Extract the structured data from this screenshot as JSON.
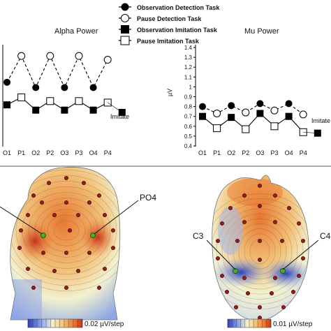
{
  "legend": [
    {
      "label": "Observation Detection Task",
      "marker": "filled-circle"
    },
    {
      "label": "Pause Detection Task",
      "marker": "open-circle"
    },
    {
      "label": "Observation Imitation Task",
      "marker": "filled-square"
    },
    {
      "label": "Pause Imitation Task",
      "marker": "open-square"
    }
  ],
  "chart_data": [
    {
      "type": "line",
      "title": "Alpha Power",
      "categories": [
        "O1",
        "P1",
        "O2",
        "P2",
        "O3",
        "P3",
        "O4",
        "P4"
      ],
      "series": [
        {
          "name": "Observation Detection Task",
          "values": [
            1.0,
            null,
            0.93,
            null,
            0.93,
            null,
            0.93,
            null
          ]
        },
        {
          "name": "Pause Detection Task",
          "values": [
            null,
            1.35,
            null,
            1.35,
            null,
            1.35,
            null,
            1.3
          ]
        },
        {
          "name": "Observation Imitation Task",
          "values": [
            0.7,
            null,
            0.63,
            null,
            0.63,
            null,
            0.63,
            null
          ]
        },
        {
          "name": "Pause Imitation Task",
          "values": [
            null,
            0.8,
            null,
            0.75,
            null,
            0.75,
            null,
            0.73
          ]
        }
      ],
      "extra_marker": {
        "label": "Imitate",
        "value": 0.6
      },
      "colors": {
        "detection": "#000000",
        "imitation": "#000000"
      }
    },
    {
      "type": "line",
      "title": "Mu Power",
      "ylabel": "µV",
      "ylim": [
        0.4,
        1.4
      ],
      "yticks": [
        "1.4",
        "1.3",
        "1.2",
        "1.1",
        "1",
        "0.9",
        "0.8",
        "0.7",
        "0.6",
        "0.5",
        "0.4"
      ],
      "categories": [
        "O1",
        "P1",
        "O2",
        "P2",
        "O3",
        "P3",
        "O4",
        "P4"
      ],
      "series": [
        {
          "name": "Observation Detection Task",
          "values": [
            0.8,
            null,
            0.81,
            null,
            0.83,
            null,
            0.83,
            null
          ]
        },
        {
          "name": "Pause Detection Task",
          "values": [
            null,
            0.73,
            null,
            0.74,
            null,
            0.76,
            null,
            0.72
          ]
        },
        {
          "name": "Observation Imitation Task",
          "values": [
            0.7,
            null,
            0.69,
            null,
            0.73,
            null,
            0.7,
            null
          ]
        },
        {
          "name": "Pause Imitation Task",
          "values": [
            null,
            0.58,
            null,
            0.57,
            null,
            0.6,
            null,
            0.54
          ]
        }
      ],
      "extra_marker": {
        "label": "Imitate",
        "value": 0.53
      }
    },
    {
      "type": "heatmap",
      "view": "posterior",
      "electrode_label": "PO4",
      "scale_label": "0.02 µV/step",
      "colors": [
        "#2b3fbf",
        "#8fa6e6",
        "#f2f2d0",
        "#f2c27a",
        "#e8782f",
        "#c9301c"
      ]
    },
    {
      "type": "heatmap",
      "view": "top",
      "electrode_labels": [
        "C3",
        "C4"
      ],
      "scale_label": "0.01 µV/step",
      "colors": [
        "#2b3fbf",
        "#8fa6e6",
        "#f2f2d0",
        "#f2c27a",
        "#e8782f",
        "#c9301c"
      ]
    }
  ]
}
